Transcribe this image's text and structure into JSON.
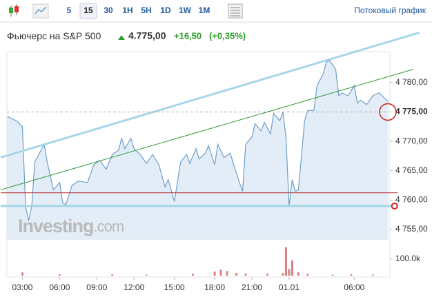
{
  "toolbar": {
    "intervals": [
      {
        "label": "5"
      },
      {
        "label": "15",
        "active": true
      },
      {
        "label": "30"
      },
      {
        "label": "1H"
      },
      {
        "label": "5H"
      },
      {
        "label": "1D"
      },
      {
        "label": "1W"
      },
      {
        "label": "1M"
      }
    ],
    "link": "Потоковый график"
  },
  "header": {
    "name": "Фьючерс на S&P 500",
    "price": "4.775,00",
    "change": "+16,50",
    "change_pct": "(+0,35%)"
  },
  "watermark": {
    "brand": "Investing",
    "suffix": ".com"
  },
  "chart_data": {
    "type": "area",
    "color": "#6d9ec9",
    "fill": "#e3edf7",
    "x": [
      -5,
      -2,
      0,
      1,
      2,
      3,
      4,
      7,
      8,
      10,
      12,
      13,
      14,
      16,
      18,
      21,
      23,
      25,
      27,
      29,
      31,
      32,
      33,
      35,
      36,
      38,
      40,
      42,
      44,
      46,
      47,
      49,
      51,
      53,
      54,
      56,
      57,
      59,
      60,
      62,
      63,
      65,
      67,
      68,
      70,
      71,
      72,
      74,
      75,
      77,
      78,
      80,
      81,
      83,
      84,
      85,
      86,
      87,
      88,
      89,
      91,
      92,
      94,
      95,
      97,
      98,
      99,
      101,
      102,
      103,
      105,
      107,
      108,
      109,
      111,
      113,
      115,
      116,
      118
    ],
    "values": [
      4774.25,
      4773.5,
      4772.5,
      4759,
      4756.5,
      4759,
      4766.5,
      4769.5,
      4766.5,
      4761.75,
      4763,
      4759.5,
      4759.25,
      4762.5,
      4763.25,
      4763,
      4766,
      4766.75,
      4765.25,
      4767.75,
      4768.5,
      4770.5,
      4768.75,
      4770.5,
      4768.75,
      4767.75,
      4766.25,
      4767.75,
      4766,
      4762.25,
      4763.5,
      4759.75,
      4766.5,
      4767.75,
      4766.25,
      4768.75,
      4767,
      4768,
      4769.25,
      4766,
      4769.5,
      4767.25,
      4768,
      4766.25,
      4763,
      4761.5,
      4769.5,
      4770.75,
      4773,
      4771.75,
      4773.25,
      4771.25,
      4774.75,
      4773.5,
      4775,
      4770.5,
      4759,
      4763.5,
      4761.5,
      4761.75,
      4773.5,
      4775.25,
      4775.25,
      4779.5,
      4781.5,
      4783.5,
      4783.75,
      4782.25,
      4777.75,
      4778.25,
      4777.75,
      4779.5,
      4776.5,
      4777,
      4776.25,
      4777.75,
      4778.25,
      4777.75,
      4776.75
    ],
    "xlim": [
      -5,
      118.5
    ],
    "xticks": [
      {
        "value": 0,
        "label": "03:00"
      },
      {
        "value": 12,
        "label": "06:00"
      },
      {
        "value": 24,
        "label": "09:00"
      },
      {
        "value": 36,
        "label": "12:00"
      },
      {
        "value": 49,
        "label": "15:00"
      },
      {
        "value": 62,
        "label": "18:00"
      },
      {
        "value": 74,
        "label": "21:00"
      },
      {
        "value": 86,
        "label": "01.01"
      },
      {
        "value": 107,
        "label": "06:00"
      }
    ],
    "ylim": [
      4753.25,
      4785.25
    ],
    "yticks": [
      {
        "value": 4755,
        "label": "4 755,00"
      },
      {
        "value": 4760,
        "label": "4 760,00"
      },
      {
        "value": 4765,
        "label": "4 765,00"
      },
      {
        "value": 4770,
        "label": "4 770,00"
      },
      {
        "value": 4780,
        "label": "4 780,00"
      }
    ],
    "last": {
      "value": 4775,
      "label": "4 775,00"
    },
    "volume": {
      "axis": "y2",
      "color": "#d98080",
      "x": [
        0,
        12,
        29,
        40,
        55,
        62,
        64,
        66,
        69,
        72,
        79,
        84,
        85,
        86,
        87,
        89,
        92,
        100,
        106,
        113
      ],
      "values": [
        20000,
        8000,
        8000,
        6000,
        10000,
        24000,
        36000,
        28000,
        16000,
        12000,
        12000,
        16000,
        172000,
        40000,
        92000,
        20000,
        10000,
        6000,
        8000,
        6000
      ]
    },
    "y2lim": [
      0,
      200000
    ],
    "y2ticks": [
      {
        "value": 100000,
        "label": "100.0k"
      }
    ],
    "trendlines": [
      {
        "color": "#a6d6ea",
        "width": 3,
        "points": [
          [
            -7,
            4767.25
          ],
          [
            128,
            4788.5
          ]
        ]
      },
      {
        "color": "#2f9a35",
        "width": 1,
        "points": [
          [
            -7,
            4761.75
          ],
          [
            126,
            4782.25
          ]
        ]
      },
      {
        "color": "#b52a2a",
        "width": 1,
        "points": [
          [
            -7,
            4761.25
          ],
          [
            121,
            4761.25
          ]
        ]
      },
      {
        "color": "#9fd6e8",
        "width": 3,
        "points": [
          [
            -7,
            4759
          ],
          [
            120,
            4759
          ]
        ]
      }
    ]
  }
}
